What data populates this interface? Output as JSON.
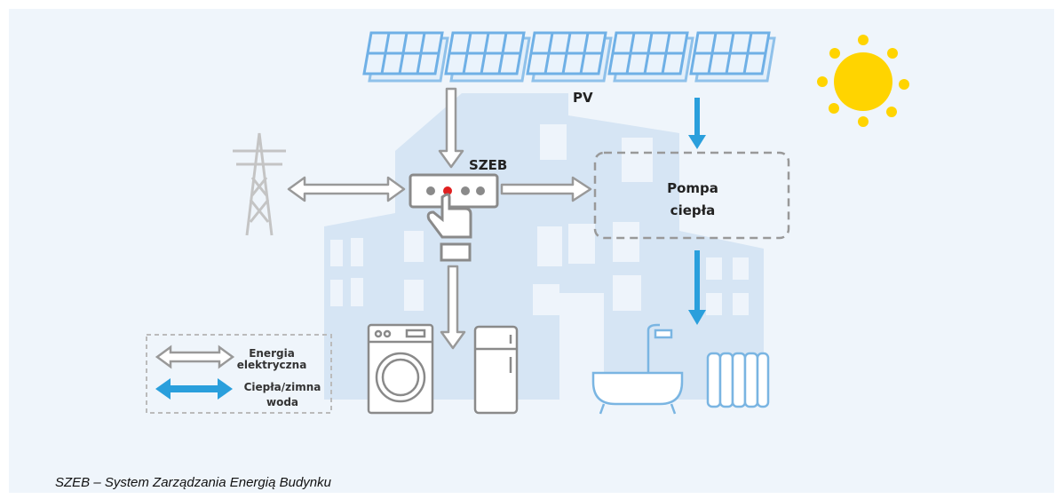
{
  "labels": {
    "pv": "PV",
    "szeb": "SZEB",
    "pump": [
      "Pompa",
      "ciepła"
    ]
  },
  "legend": {
    "electric": [
      "Energia",
      "elektryczna"
    ],
    "water": [
      "Ciepła/zimna",
      "woda"
    ]
  },
  "caption": "SZEB – System Zarządzania Energią Budynku"
}
